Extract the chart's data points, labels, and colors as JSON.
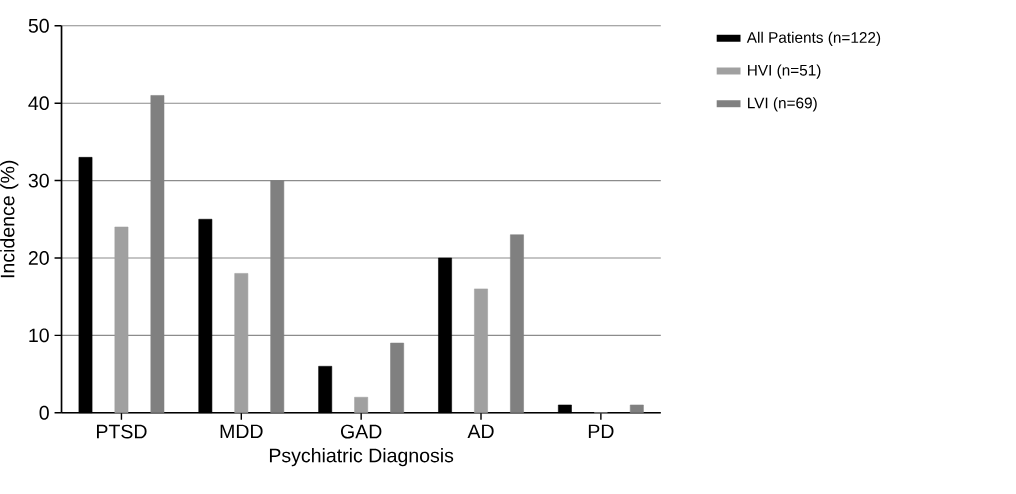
{
  "chart_data": {
    "type": "bar",
    "xlabel": "Psychiatric Diagnosis",
    "ylabel": "Incidence (%)",
    "categories": [
      "PTSD",
      "MDD",
      "GAD",
      "AD",
      "PD"
    ],
    "series": [
      {
        "name": "All Patients (n=122)",
        "color": "#000000",
        "values": [
          33,
          25,
          6,
          20,
          1
        ]
      },
      {
        "name": "HVI (n=51)",
        "color": "#a0a0a0",
        "values": [
          24,
          18,
          2,
          16,
          0
        ]
      },
      {
        "name": "LVI (n=69)",
        "color": "#808080",
        "values": [
          41,
          30,
          9,
          23,
          1
        ]
      }
    ],
    "ylim": [
      0,
      50
    ],
    "yticks": [
      0,
      10,
      20,
      30,
      40,
      50
    ],
    "grid": "y",
    "legend": "top right"
  }
}
